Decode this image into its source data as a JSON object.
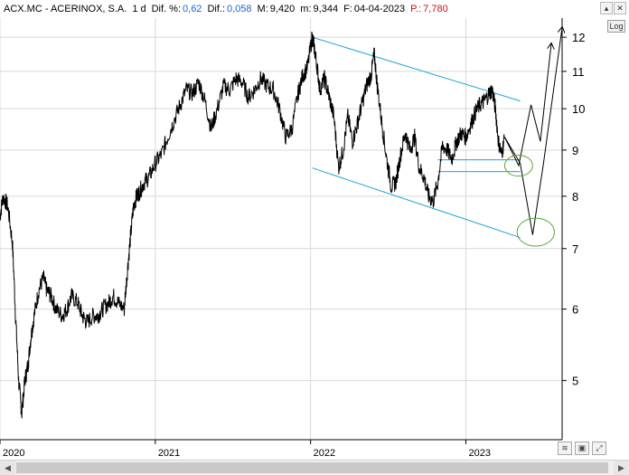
{
  "header": {
    "symbol": "ACX.MC - ACERINOX, S.A.",
    "interval": "1 d",
    "dif_pct_label": "Dif. %:",
    "dif_pct_value": "0,62",
    "dif_label": "Dif.:",
    "dif_value": "0,058",
    "max_label": "M:",
    "max_value": "9,420",
    "min_label": "m:",
    "min_value": "9,344",
    "date_label": "F:",
    "date_value": "04-04-2023",
    "price_label": "P.:",
    "price_value": "7,780"
  },
  "toolbar": {
    "log_label": "Log"
  },
  "chart_data": {
    "type": "line",
    "title": "",
    "xlabel": "",
    "ylabel": "",
    "yscale": "log",
    "ylim": [
      4.3,
      12.6
    ],
    "y_ticks": [
      "12",
      "11",
      "10",
      "9",
      "8",
      "7",
      "6",
      "5"
    ],
    "x_ticks": [
      "2020",
      "2021",
      "2022",
      "2023"
    ],
    "grid": true,
    "legend": "none",
    "colors": {
      "price": "#000000",
      "channel": "#1aa6d8",
      "projection": "#000000",
      "target_circle": "#5aa832",
      "grid": "#d9d9d9"
    },
    "series": [
      {
        "x": [
          2020.0,
          2020.02,
          2020.05,
          2020.08,
          2020.1,
          2020.12,
          2020.14,
          2020.16,
          2020.18,
          2020.2,
          2020.22,
          2020.25,
          2020.28,
          2020.3,
          2020.33,
          2020.36,
          2020.4,
          2020.43,
          2020.46,
          2020.5,
          2020.53,
          2020.56,
          2020.6,
          2020.63,
          2020.66,
          2020.7,
          2020.73,
          2020.76,
          2020.8,
          2020.82,
          2020.84,
          2020.86,
          2020.88,
          2020.9,
          2020.93,
          2020.96,
          2021.0,
          2021.04,
          2021.08,
          2021.12,
          2021.16,
          2021.2,
          2021.24,
          2021.28,
          2021.32,
          2021.36,
          2021.4,
          2021.44,
          2021.48,
          2021.52,
          2021.56,
          2021.6,
          2021.64,
          2021.68,
          2021.72,
          2021.76,
          2021.8,
          2021.84,
          2021.88,
          2021.92,
          2021.95,
          2021.98,
          2022.01,
          2022.02,
          2022.04,
          2022.06,
          2022.09,
          2022.12,
          2022.15,
          2022.18,
          2022.21,
          2022.24,
          2022.27,
          2022.3,
          2022.33,
          2022.36,
          2022.39,
          2022.41,
          2022.43,
          2022.46,
          2022.49,
          2022.52,
          2022.55,
          2022.58,
          2022.61,
          2022.64,
          2022.67,
          2022.7,
          2022.73,
          2022.76,
          2022.79,
          2022.82,
          2022.85,
          2022.88,
          2022.91,
          2022.94,
          2022.97,
          2023.0,
          2023.03,
          2023.06,
          2023.09,
          2023.12,
          2023.15,
          2023.17,
          2023.19,
          2023.21,
          2023.23,
          2023.25
        ],
        "values": [
          7.6,
          8.0,
          7.8,
          7.1,
          5.9,
          5.0,
          4.6,
          5.0,
          5.2,
          5.6,
          5.9,
          6.3,
          6.5,
          6.3,
          6.2,
          6.0,
          5.9,
          6.0,
          6.2,
          6.1,
          5.9,
          5.8,
          5.9,
          5.9,
          6.0,
          6.1,
          6.2,
          6.1,
          6.0,
          6.6,
          7.2,
          7.8,
          8.0,
          8.1,
          8.3,
          8.4,
          8.7,
          8.9,
          9.3,
          9.7,
          10.1,
          10.5,
          10.4,
          10.7,
          10.2,
          9.5,
          10.0,
          10.6,
          10.5,
          10.8,
          10.7,
          10.3,
          10.5,
          10.8,
          10.6,
          10.5,
          10.0,
          9.3,
          9.5,
          10.4,
          10.9,
          11.1,
          12.0,
          11.8,
          11.2,
          10.5,
          10.8,
          10.3,
          9.8,
          8.6,
          9.0,
          9.8,
          9.2,
          9.6,
          10.1,
          10.6,
          10.9,
          11.5,
          10.6,
          9.6,
          8.8,
          8.2,
          8.3,
          8.9,
          9.4,
          9.0,
          9.3,
          8.6,
          8.4,
          8.0,
          7.9,
          8.3,
          9.1,
          9.0,
          8.8,
          9.2,
          9.4,
          9.3,
          9.6,
          9.9,
          10.1,
          10.2,
          10.4,
          10.5,
          10.0,
          9.2,
          8.9,
          9.3
        ]
      }
    ],
    "channel_upper": {
      "x": [
        2022.01,
        2023.35
      ],
      "values": [
        12.0,
        10.2
      ]
    },
    "channel_lower": {
      "x": [
        2022.01,
        2023.35
      ],
      "values": [
        8.6,
        7.2
      ]
    },
    "support_lines": [
      {
        "x": [
          2022.82,
          2023.35
        ],
        "values": [
          8.78,
          8.78
        ]
      },
      {
        "x": [
          2022.82,
          2023.35
        ],
        "values": [
          8.52,
          8.52
        ]
      }
    ],
    "projections": [
      {
        "x": [
          2023.25,
          2023.34,
          2023.42,
          2023.48,
          2023.55
        ],
        "values": [
          9.3,
          8.65,
          10.1,
          9.2,
          11.8
        ]
      },
      {
        "x": [
          2023.25,
          2023.35,
          2023.43,
          2023.5,
          2023.62
        ],
        "values": [
          9.3,
          8.7,
          7.25,
          8.7,
          12.3
        ]
      }
    ],
    "target_circles": [
      {
        "x": 2023.34,
        "value": 8.65,
        "rx_years": 0.09,
        "ry_ratio": 0.1
      },
      {
        "x": 2023.45,
        "value": 7.3,
        "rx_years": 0.12,
        "ry_ratio": 0.12
      }
    ]
  }
}
